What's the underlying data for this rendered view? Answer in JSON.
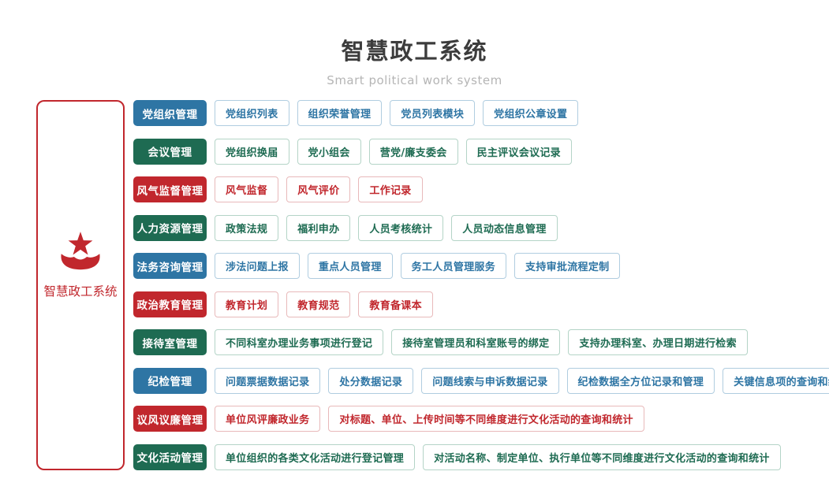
{
  "header": {
    "title": "智慧政工系统",
    "subtitle": "Smart political work system"
  },
  "root": {
    "label": "智慧政工系统",
    "icon": "star-emblem-icon"
  },
  "colors": {
    "blue": {
      "fill": "#2e75a4",
      "border": "#b0cde0"
    },
    "green": {
      "fill": "#1e6b52",
      "border": "#b4d4c7"
    },
    "red": {
      "fill": "#c1272d",
      "border": "#e8b9ba"
    }
  },
  "rows": [
    {
      "category": "党组织管理",
      "color": "blue",
      "items": [
        "党组织列表",
        "组织荣誉管理",
        "党员列表模块",
        "党组织公章设置"
      ]
    },
    {
      "category": "会议管理",
      "color": "green",
      "items": [
        "党组织换届",
        "党小组会",
        "营党/廉支委会",
        "民主评议会议记录"
      ]
    },
    {
      "category": "风气监督管理",
      "color": "red",
      "items": [
        "风气监督",
        "风气评价",
        "工作记录"
      ]
    },
    {
      "category": "人力资源管理",
      "color": "green",
      "items": [
        "政策法规",
        "福利申办",
        "人员考核统计",
        "人员动态信息管理"
      ]
    },
    {
      "category": "法务咨询管理",
      "color": "blue",
      "items": [
        "涉法问题上报",
        "重点人员管理",
        "务工人员管理服务",
        "支持审批流程定制"
      ]
    },
    {
      "category": "政治教育管理",
      "color": "red",
      "items": [
        "教育计划",
        "教育规范",
        "教育备课本"
      ]
    },
    {
      "category": "接待室管理",
      "color": "green",
      "items": [
        "不同科室办理业务事项进行登记",
        "接待室管理员和科室账号的绑定",
        "支持办理科室、办理日期进行检索"
      ]
    },
    {
      "category": "纪检管理",
      "color": "blue",
      "items": [
        "问题票据数据记录",
        "处分数据记录",
        "问题线索与申诉数据记录",
        "纪检数据全方位记录和管理",
        "关键信息项的查询和统计"
      ]
    },
    {
      "category": "议风议廉管理",
      "color": "red",
      "items": [
        "单位风评廉政业务",
        "对标题、单位、上传时间等不同维度进行文化活动的查询和统计"
      ]
    },
    {
      "category": "文化活动管理",
      "color": "green",
      "items": [
        "单位组织的各类文化活动进行登记管理",
        "对活动名称、制定单位、执行单位等不同维度进行文化活动的查询和统计"
      ]
    }
  ]
}
